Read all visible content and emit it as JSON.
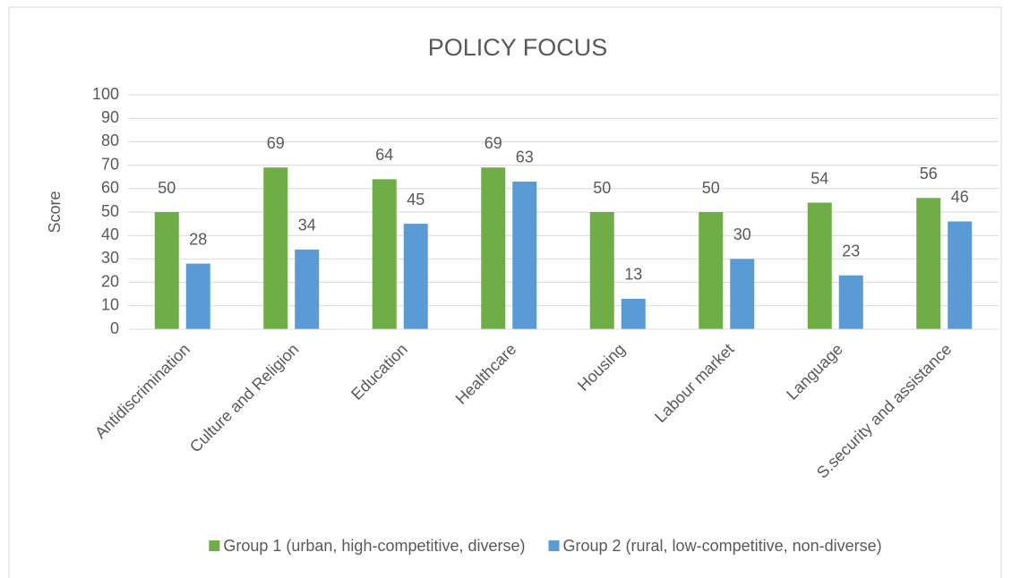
{
  "chart_data": {
    "type": "bar",
    "title": "POLICY FOCUS",
    "y_label": "Score",
    "categories": [
      "Antidiscrimination",
      "Culture and Religion",
      "Education",
      "Healthcare",
      "Housing",
      "Labour market",
      "Language",
      "S.security and assistance"
    ],
    "series": [
      {
        "name": "Group 1 (urban, high-competitive, diverse)",
        "color": "#70ad47",
        "values": [
          50,
          69,
          64,
          69,
          50,
          50,
          54,
          56
        ]
      },
      {
        "name": "Group 2 (rural, low-competitive, non-diverse)",
        "color": "#5b9bd5",
        "values": [
          28,
          34,
          45,
          63,
          13,
          30,
          23,
          46
        ]
      }
    ],
    "ylim": [
      0,
      100
    ],
    "yticks": [
      0,
      10,
      20,
      30,
      40,
      50,
      60,
      70,
      80,
      90,
      100
    ],
    "grid": true,
    "legend": "bottom"
  }
}
